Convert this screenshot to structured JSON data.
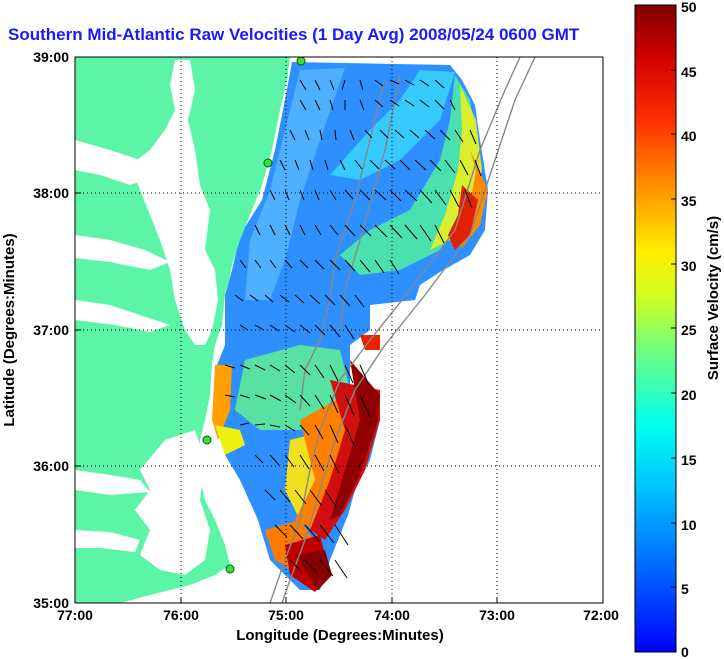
{
  "chart_data": {
    "type": "heatmap",
    "title": "Southern Mid-Atlantic Raw Velocities (1 Day Avg) 2008/05/24 0600 GMT",
    "xlabel": "Longitude (Degrees:Minutes)",
    "ylabel": "Latitude (Degrees:Minutes)",
    "colorbar_label": "Surface Velocity (cm/s)",
    "x_ticks": [
      "77:00",
      "76:00",
      "75:00",
      "74:00",
      "73:00",
      "72:00"
    ],
    "y_ticks": [
      "39:00",
      "38:00",
      "37:00",
      "36:00",
      "35:00"
    ],
    "xlim": [
      -77,
      -72
    ],
    "ylim": [
      35,
      39
    ],
    "colorbar_ticks": [
      "50",
      "45",
      "40",
      "35",
      "30",
      "25",
      "20",
      "15",
      "10",
      "5",
      "0"
    ],
    "colorbar_range": [
      0,
      50
    ],
    "grid": true,
    "colors": {
      "land": "#5cf5a8",
      "title": "#1a1aff"
    }
  }
}
